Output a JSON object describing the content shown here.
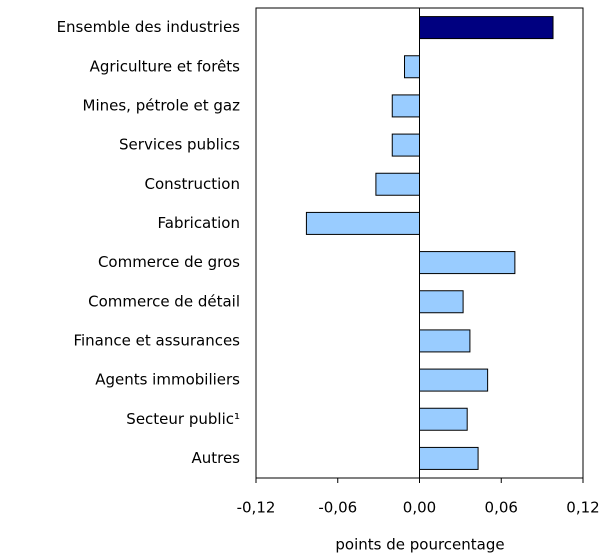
{
  "chart_data": {
    "type": "hbar",
    "categories": [
      "Ensemble des industries",
      "Agriculture et forêts",
      "Mines, pétrole et gaz",
      "Services publics",
      "Construction",
      "Fabrication",
      "Commerce de gros",
      "Commerce de détail",
      "Finance et assurances",
      "Agents immobiliers",
      "Secteur public¹",
      "Autres"
    ],
    "values": [
      0.098,
      -0.011,
      -0.02,
      -0.02,
      -0.032,
      -0.083,
      0.07,
      0.032,
      0.037,
      0.05,
      0.035,
      0.043
    ],
    "colors": [
      "#000080",
      "#99ccff",
      "#99ccff",
      "#99ccff",
      "#99ccff",
      "#99ccff",
      "#99ccff",
      "#99ccff",
      "#99ccff",
      "#99ccff",
      "#99ccff",
      "#99ccff"
    ],
    "xlabel": "points de pourcentage",
    "xlim": [
      -0.12,
      0.12
    ],
    "xticks": [
      {
        "value": -0.12,
        "label": "-0,12"
      },
      {
        "value": -0.06,
        "label": "-0,06"
      },
      {
        "value": 0,
        "label": "0,00"
      },
      {
        "value": 0.06,
        "label": "0,06"
      },
      {
        "value": 0.12,
        "label": "0,12"
      }
    ]
  }
}
